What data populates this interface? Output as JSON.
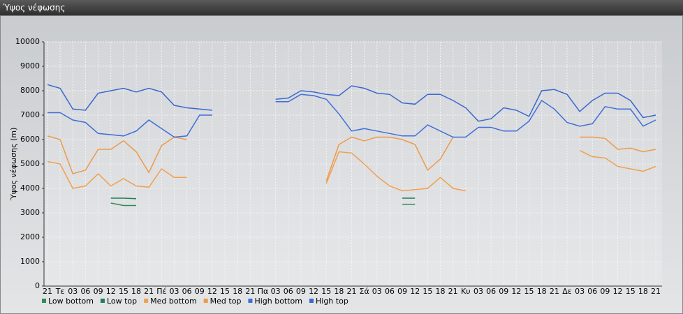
{
  "chart_data": {
    "type": "line",
    "title": "Ύψος νέφωσης",
    "ylabel": "Ύψος νέφωσης (m)",
    "categories": [
      "21",
      "Τε",
      "03",
      "06",
      "09",
      "12",
      "15",
      "18",
      "21",
      "Πέ",
      "03",
      "06",
      "09",
      "12",
      "15",
      "18",
      "21",
      "Πα",
      "03",
      "06",
      "09",
      "12",
      "15",
      "18",
      "21",
      "Σά",
      "03",
      "06",
      "09",
      "12",
      "15",
      "18",
      "21",
      "Κυ",
      "03",
      "06",
      "09",
      "12",
      "15",
      "18",
      "21",
      "Δε",
      "03",
      "06",
      "09",
      "12",
      "15",
      "18",
      "21"
    ],
    "series": [
      {
        "name": "Low bottom",
        "color": "#2e8b57",
        "values": [
          null,
          null,
          null,
          null,
          null,
          3400,
          3300,
          3300,
          null,
          null,
          null,
          null,
          null,
          null,
          null,
          null,
          null,
          null,
          null,
          null,
          null,
          null,
          null,
          null,
          null,
          null,
          null,
          null,
          3350,
          3350,
          null,
          null,
          null,
          null,
          null,
          null,
          null,
          null,
          null,
          null,
          null,
          null,
          null,
          null,
          null,
          null,
          null,
          null,
          null
        ]
      },
      {
        "name": "Low top",
        "color": "#1f7f55",
        "values": [
          null,
          null,
          null,
          null,
          null,
          3600,
          3600,
          3580,
          null,
          null,
          null,
          null,
          null,
          null,
          null,
          null,
          null,
          null,
          null,
          null,
          null,
          null,
          null,
          null,
          null,
          null,
          null,
          null,
          3600,
          3600,
          null,
          null,
          null,
          null,
          null,
          null,
          null,
          null,
          null,
          null,
          null,
          null,
          null,
          null,
          null,
          null,
          null,
          null,
          null
        ]
      },
      {
        "name": "Med bottom",
        "color": "#f0a050",
        "values": [
          5100,
          5000,
          4000,
          4100,
          4600,
          4100,
          4400,
          4100,
          4050,
          4800,
          4450,
          4450,
          null,
          null,
          null,
          null,
          null,
          null,
          null,
          null,
          null,
          null,
          4200,
          5500,
          5450,
          5000,
          4500,
          4100,
          3900,
          3950,
          4000,
          4450,
          4000,
          3900,
          null,
          null,
          null,
          null,
          null,
          null,
          null,
          null,
          5550,
          5300,
          5250,
          4900,
          4800,
          4700,
          4900
        ]
      },
      {
        "name": "Med top",
        "color": "#ee9a48",
        "values": [
          6150,
          6000,
          4600,
          4750,
          5600,
          5600,
          5950,
          5500,
          4650,
          5750,
          6100,
          6000,
          null,
          null,
          null,
          null,
          null,
          null,
          null,
          null,
          null,
          null,
          4300,
          5800,
          6100,
          5950,
          6100,
          6100,
          6000,
          5800,
          4750,
          5200,
          6100,
          null,
          null,
          null,
          null,
          null,
          null,
          null,
          null,
          null,
          6100,
          6100,
          6050,
          5600,
          5650,
          5500,
          5600
        ]
      },
      {
        "name": "High bottom",
        "color": "#3d6fd8",
        "values": [
          7100,
          7100,
          6800,
          6700,
          6250,
          6200,
          6150,
          6350,
          6800,
          6450,
          6100,
          6150,
          7000,
          7000,
          null,
          null,
          null,
          null,
          7550,
          7550,
          7850,
          7800,
          7650,
          7050,
          6350,
          6450,
          6350,
          6250,
          6150,
          6150,
          6600,
          6350,
          6100,
          6100,
          6500,
          6500,
          6350,
          6350,
          6750,
          7600,
          7250,
          6700,
          6550,
          6650,
          7350,
          7250,
          7250,
          6550,
          6800
        ]
      },
      {
        "name": "High top",
        "color": "#3a68d0",
        "values": [
          8250,
          8100,
          7250,
          7200,
          7900,
          8000,
          8100,
          7950,
          8100,
          7950,
          7400,
          7300,
          7250,
          7200,
          null,
          null,
          null,
          null,
          7650,
          7700,
          8000,
          7950,
          7850,
          7800,
          8200,
          8100,
          7900,
          7850,
          7500,
          7450,
          7850,
          7850,
          7600,
          7300,
          6750,
          6850,
          7300,
          7200,
          6950,
          8000,
          8050,
          7850,
          7150,
          7600,
          7900,
          7900,
          7600,
          6900,
          7000
        ]
      }
    ],
    "ylim": [
      0,
      10000
    ],
    "yticks": [
      0,
      1000,
      2000,
      3000,
      4000,
      5000,
      6000,
      7000,
      8000,
      9000,
      10000
    ],
    "grid": true
  }
}
